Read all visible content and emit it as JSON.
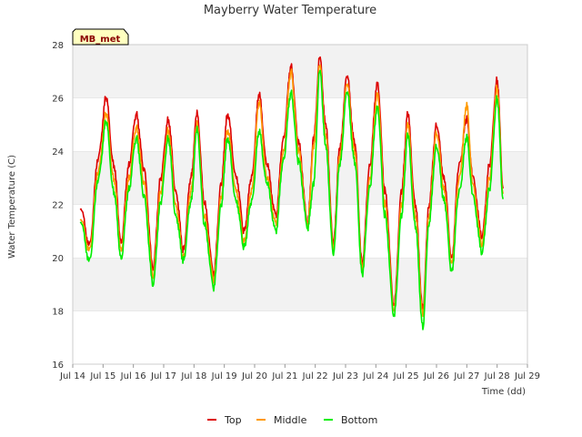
{
  "chart_data": {
    "type": "line",
    "title": "Mayberry Water Temperature",
    "xlabel": "Time (dd)",
    "ylabel": "Water Temperature (C)",
    "ylim": [
      16,
      28
    ],
    "yticks": [
      16,
      18,
      20,
      22,
      24,
      26,
      28
    ],
    "xlim": [
      14,
      29
    ],
    "xticks": [
      14,
      15,
      16,
      17,
      18,
      19,
      20,
      21,
      22,
      23,
      24,
      25,
      26,
      27,
      28,
      29
    ],
    "xtick_labels": [
      "Jul 14",
      "Jul 15",
      "Jul 16",
      "Jul 17",
      "Jul 18",
      "Jul 19",
      "Jul 20",
      "Jul 21",
      "Jul 22",
      "Jul 23",
      "Jul 24",
      "Jul 25",
      "Jul 26",
      "Jul 27",
      "Jul 28",
      "Jul 29"
    ],
    "badge": "MB_met",
    "legend_position": "bottom-center",
    "series": [
      {
        "name": "Top",
        "color": "#dd0000",
        "points": [
          [
            14.25,
            21.9
          ],
          [
            14.55,
            20.5
          ],
          [
            14.85,
            23.8
          ],
          [
            15.1,
            26.0
          ],
          [
            15.35,
            23.5
          ],
          [
            15.6,
            20.6
          ],
          [
            15.85,
            23.5
          ],
          [
            16.1,
            25.4
          ],
          [
            16.35,
            23.3
          ],
          [
            16.65,
            19.6
          ],
          [
            16.9,
            23.0
          ],
          [
            17.15,
            25.2
          ],
          [
            17.4,
            22.5
          ],
          [
            17.65,
            20.3
          ],
          [
            17.9,
            23.0
          ],
          [
            18.1,
            25.4
          ],
          [
            18.35,
            22.0
          ],
          [
            18.65,
            19.4
          ],
          [
            18.9,
            22.8
          ],
          [
            19.1,
            25.4
          ],
          [
            19.4,
            23.0
          ],
          [
            19.65,
            21.0
          ],
          [
            19.9,
            23.0
          ],
          [
            20.15,
            26.1
          ],
          [
            20.4,
            23.5
          ],
          [
            20.7,
            21.6
          ],
          [
            20.95,
            24.5
          ],
          [
            21.2,
            27.2
          ],
          [
            21.45,
            24.3
          ],
          [
            21.75,
            21.3
          ],
          [
            21.95,
            24.5
          ],
          [
            22.15,
            27.5
          ],
          [
            22.35,
            24.9
          ],
          [
            22.6,
            20.5
          ],
          [
            22.8,
            24.0
          ],
          [
            23.05,
            26.8
          ],
          [
            23.3,
            24.3
          ],
          [
            23.55,
            19.8
          ],
          [
            23.8,
            23.5
          ],
          [
            24.05,
            26.6
          ],
          [
            24.3,
            22.5
          ],
          [
            24.6,
            18.2
          ],
          [
            24.85,
            22.5
          ],
          [
            25.05,
            25.4
          ],
          [
            25.3,
            22.0
          ],
          [
            25.55,
            18.1
          ],
          [
            25.75,
            22.0
          ],
          [
            26.0,
            25.0
          ],
          [
            26.25,
            23.0
          ],
          [
            26.5,
            20.0
          ],
          [
            26.75,
            23.5
          ],
          [
            27.0,
            25.2
          ],
          [
            27.2,
            23.0
          ],
          [
            27.5,
            20.8
          ],
          [
            27.75,
            23.5
          ],
          [
            28.0,
            26.7
          ],
          [
            28.2,
            22.6
          ]
        ]
      },
      {
        "name": "Middle",
        "color": "#ff9900",
        "points": [
          [
            14.25,
            21.5
          ],
          [
            14.55,
            20.3
          ],
          [
            14.85,
            23.3
          ],
          [
            15.1,
            25.4
          ],
          [
            15.35,
            23.0
          ],
          [
            15.6,
            20.3
          ],
          [
            15.85,
            23.0
          ],
          [
            16.1,
            24.9
          ],
          [
            16.35,
            22.8
          ],
          [
            16.65,
            19.3
          ],
          [
            16.9,
            22.5
          ],
          [
            17.15,
            24.8
          ],
          [
            17.4,
            22.0
          ],
          [
            17.65,
            20.0
          ],
          [
            17.9,
            22.5
          ],
          [
            18.1,
            25.0
          ],
          [
            18.35,
            21.5
          ],
          [
            18.65,
            19.2
          ],
          [
            18.9,
            22.3
          ],
          [
            19.1,
            24.8
          ],
          [
            19.4,
            22.5
          ],
          [
            19.65,
            20.6
          ],
          [
            19.9,
            22.5
          ],
          [
            20.15,
            25.8
          ],
          [
            20.4,
            23.0
          ],
          [
            20.7,
            21.3
          ],
          [
            20.95,
            24.0
          ],
          [
            21.2,
            27.0
          ],
          [
            21.45,
            24.0
          ],
          [
            21.75,
            21.2
          ],
          [
            21.95,
            24.2
          ],
          [
            22.15,
            27.2
          ],
          [
            22.35,
            24.5
          ],
          [
            22.6,
            20.3
          ],
          [
            22.8,
            23.7
          ],
          [
            23.05,
            26.5
          ],
          [
            23.3,
            24.0
          ],
          [
            23.55,
            19.6
          ],
          [
            23.8,
            23.0
          ],
          [
            24.05,
            26.2
          ],
          [
            24.3,
            22.0
          ],
          [
            24.6,
            18.0
          ],
          [
            24.85,
            22.0
          ],
          [
            25.05,
            25.0
          ],
          [
            25.3,
            21.6
          ],
          [
            25.55,
            17.9
          ],
          [
            25.75,
            21.6
          ],
          [
            26.0,
            24.7
          ],
          [
            26.25,
            22.6
          ],
          [
            26.5,
            19.8
          ],
          [
            26.75,
            23.0
          ],
          [
            27.0,
            25.7
          ],
          [
            27.2,
            22.7
          ],
          [
            27.5,
            20.5
          ],
          [
            27.75,
            23.0
          ],
          [
            28.0,
            26.4
          ],
          [
            28.2,
            22.4
          ]
        ]
      },
      {
        "name": "Bottom",
        "color": "#00ee00",
        "points": [
          [
            14.25,
            21.4
          ],
          [
            14.55,
            19.9
          ],
          [
            14.85,
            23.0
          ],
          [
            15.1,
            25.1
          ],
          [
            15.35,
            22.5
          ],
          [
            15.6,
            20.0
          ],
          [
            15.85,
            22.6
          ],
          [
            16.1,
            24.5
          ],
          [
            16.35,
            22.3
          ],
          [
            16.65,
            19.0
          ],
          [
            16.9,
            22.1
          ],
          [
            17.15,
            24.5
          ],
          [
            17.4,
            21.6
          ],
          [
            17.65,
            19.9
          ],
          [
            17.9,
            22.1
          ],
          [
            18.1,
            24.8
          ],
          [
            18.35,
            21.2
          ],
          [
            18.65,
            18.9
          ],
          [
            18.9,
            22.0
          ],
          [
            19.1,
            24.5
          ],
          [
            19.4,
            22.1
          ],
          [
            19.65,
            20.4
          ],
          [
            19.9,
            22.1
          ],
          [
            20.15,
            24.7
          ],
          [
            20.4,
            22.8
          ],
          [
            20.7,
            21.0
          ],
          [
            20.95,
            23.7
          ],
          [
            21.2,
            26.2
          ],
          [
            21.45,
            23.6
          ],
          [
            21.75,
            21.1
          ],
          [
            21.95,
            22.8
          ],
          [
            22.15,
            27.0
          ],
          [
            22.35,
            24.1
          ],
          [
            22.6,
            20.1
          ],
          [
            22.8,
            23.4
          ],
          [
            23.05,
            26.2
          ],
          [
            23.3,
            23.6
          ],
          [
            23.55,
            19.4
          ],
          [
            23.8,
            22.7
          ],
          [
            24.05,
            25.7
          ],
          [
            24.3,
            21.6
          ],
          [
            24.6,
            17.8
          ],
          [
            24.85,
            21.6
          ],
          [
            25.05,
            24.6
          ],
          [
            25.3,
            21.2
          ],
          [
            25.55,
            17.4
          ],
          [
            25.75,
            21.3
          ],
          [
            26.0,
            24.2
          ],
          [
            26.25,
            22.2
          ],
          [
            26.5,
            19.5
          ],
          [
            26.75,
            22.5
          ],
          [
            27.0,
            24.5
          ],
          [
            27.2,
            22.3
          ],
          [
            27.5,
            20.2
          ],
          [
            27.75,
            22.6
          ],
          [
            28.0,
            26.0
          ],
          [
            28.2,
            22.2
          ]
        ]
      }
    ]
  }
}
